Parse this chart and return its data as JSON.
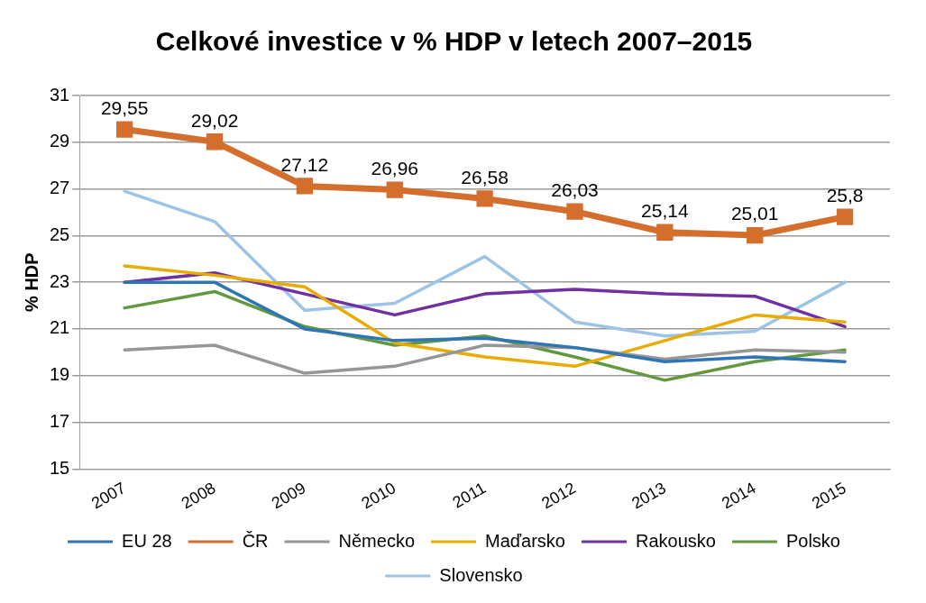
{
  "chart_data": {
    "type": "line",
    "title": "Celkové investice v % HDP v letech 2007–2015",
    "ylabel": "% HDP",
    "categories": [
      "2007",
      "2008",
      "2009",
      "2010",
      "2011",
      "2012",
      "2013",
      "2014",
      "2015"
    ],
    "ylim": [
      15,
      31
    ],
    "yticks": [
      15,
      17,
      19,
      21,
      23,
      25,
      27,
      29,
      31
    ],
    "grid": "y",
    "legend": "bottom",
    "marker": "none",
    "series": [
      {
        "name": "EU 28",
        "color": "#2e75b6",
        "values": [
          23.0,
          23.0,
          21.0,
          20.5,
          20.6,
          20.2,
          19.6,
          19.8,
          19.6
        ]
      },
      {
        "name": "ČR",
        "color": "#d46e2c",
        "marker": "square",
        "values": [
          29.55,
          29.02,
          27.12,
          26.96,
          26.58,
          26.03,
          25.14,
          25.01,
          25.8
        ],
        "value_labels": [
          "29,55",
          "29,02",
          "27,12",
          "26,96",
          "26,58",
          "26,03",
          "25,14",
          "25,01",
          "25,8"
        ]
      },
      {
        "name": "Německo",
        "color": "#969696",
        "values": [
          20.1,
          20.3,
          19.1,
          19.4,
          20.3,
          20.2,
          19.7,
          20.1,
          20.0
        ]
      },
      {
        "name": "Maďarsko",
        "color": "#e8ac00",
        "values": [
          23.7,
          23.3,
          22.8,
          20.4,
          19.8,
          19.4,
          20.5,
          21.6,
          21.3
        ]
      },
      {
        "name": "Rakousko",
        "color": "#7030a0",
        "values": [
          23.0,
          23.4,
          22.5,
          21.6,
          22.5,
          22.7,
          22.5,
          22.4,
          21.1
        ]
      },
      {
        "name": "Polsko",
        "color": "#62993e",
        "values": [
          21.9,
          22.6,
          21.1,
          20.3,
          20.7,
          19.8,
          18.8,
          19.6,
          20.1
        ]
      },
      {
        "name": "Slovensko",
        "color": "#9dc3e6",
        "values": [
          26.9,
          25.6,
          21.8,
          22.1,
          24.1,
          21.3,
          20.7,
          20.9,
          23.0
        ]
      }
    ]
  }
}
